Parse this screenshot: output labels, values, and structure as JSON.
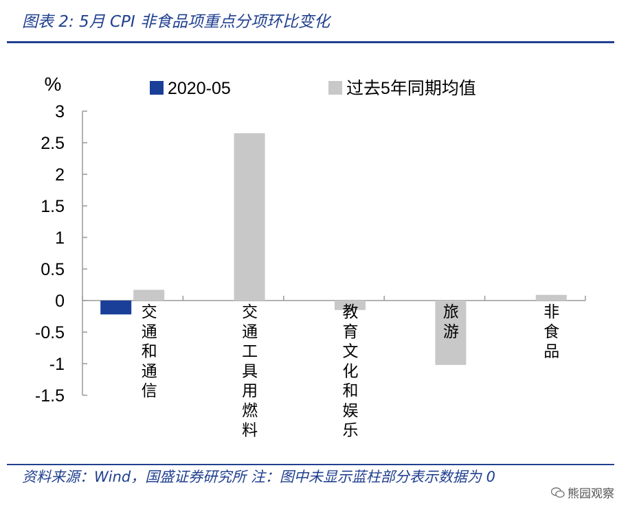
{
  "header": {
    "title": "图表 2:  5月 CPI 非食品项重点分项环比变化"
  },
  "footer": {
    "source": "资料来源：Wind，国盛证券研究所  注：图中未显示蓝柱部分表示数据为 0",
    "watermark": "熊园观察"
  },
  "chart_data": {
    "type": "bar",
    "ylabel": "%",
    "ylim": [
      -1.5,
      3
    ],
    "yticks": [
      "3",
      "2.5",
      "2",
      "1.5",
      "1",
      "0.5",
      "0",
      "-0.5",
      "-1",
      "-1.5"
    ],
    "legend_position": "top",
    "categories": [
      "交通和通信",
      "交通工具用燃料",
      "教育文化和娱乐",
      "旅游",
      "非食品"
    ],
    "series": [
      {
        "name": "2020-05",
        "color": "#1a3f99",
        "values": [
          -0.22,
          0,
          0,
          0,
          0
        ]
      },
      {
        "name": "过去5年同期均值",
        "color": "#c8c8c8",
        "values": [
          0.17,
          2.65,
          -0.15,
          -1.02,
          0.09
        ]
      }
    ]
  }
}
